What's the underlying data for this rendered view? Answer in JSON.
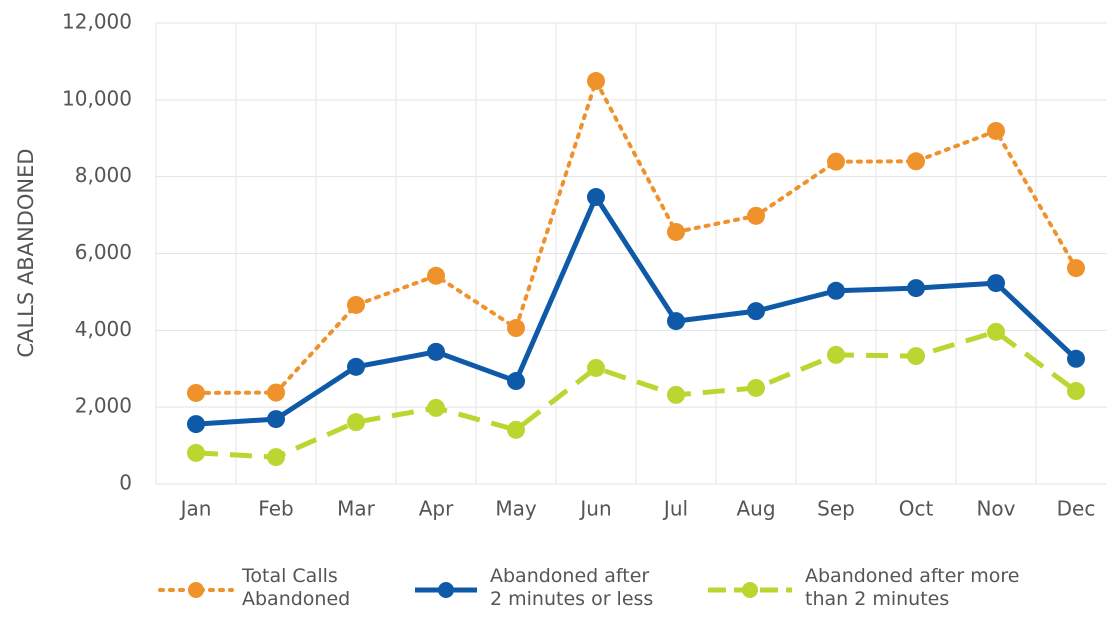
{
  "chart_data": {
    "type": "line",
    "y_label": "CALLS ABANDONED",
    "categories": [
      "Jan",
      "Feb",
      "Mar",
      "Apr",
      "May",
      "Jun",
      "Jul",
      "Aug",
      "Sep",
      "Oct",
      "Nov",
      "Dec"
    ],
    "series": [
      {
        "name": "Total Calls Abandoned",
        "color": "#f0922b",
        "style": "dotted",
        "values": [
          2370,
          2380,
          4660,
          5420,
          4060,
          10490,
          6560,
          6980,
          8390,
          8400,
          9190,
          5620
        ]
      },
      {
        "name": "Abandoned after 2 minutes or less",
        "color": "#0f5aa8",
        "style": "solid",
        "values": [
          1560,
          1690,
          3050,
          3440,
          2680,
          7470,
          4240,
          4500,
          5030,
          5100,
          5230,
          3260
        ]
      },
      {
        "name": "Abandoned after more than 2 minutes",
        "color": "#bcd631",
        "style": "dashed",
        "values": [
          810,
          700,
          1610,
          1980,
          1410,
          3020,
          2320,
          2500,
          3360,
          3330,
          3960,
          2420
        ]
      }
    ],
    "ylim": [
      0,
      12000
    ],
    "yticks": [
      0,
      {
        "value": 2000,
        "label": "2,000"
      },
      {
        "value": 4000,
        "label": "4,000"
      },
      {
        "value": 6000,
        "label": "6,000"
      },
      {
        "value": 8000,
        "label": "8,000"
      },
      {
        "value": 10000,
        "label": "10,000"
      },
      {
        "value": 12000,
        "label": "12,000"
      }
    ],
    "grid": true,
    "legend": "bottom"
  }
}
